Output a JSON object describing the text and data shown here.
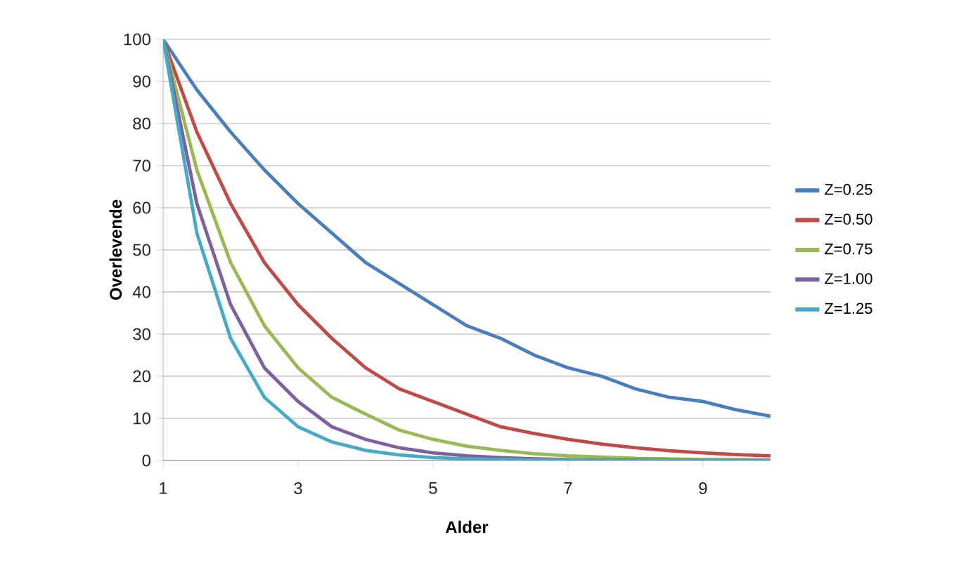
{
  "chart_data": {
    "type": "line",
    "xlabel": "Alder",
    "ylabel": "Overlevende",
    "x": [
      1,
      1.5,
      2,
      2.5,
      3,
      3.5,
      4,
      4.5,
      5,
      5.5,
      6,
      6.5,
      7,
      7.5,
      8,
      8.5,
      9,
      9.5,
      10
    ],
    "xlim": [
      1,
      10
    ],
    "xticks": [
      1,
      3,
      5,
      7,
      9
    ],
    "ylim": [
      0,
      100
    ],
    "yticks": [
      0,
      10,
      20,
      30,
      40,
      50,
      60,
      70,
      80,
      90,
      100
    ],
    "grid": "y",
    "legend": "right",
    "marker": "none",
    "line_style": "solid",
    "series": [
      {
        "name": "Z=0.25",
        "color": "#4a7ebb",
        "values": [
          100,
          88,
          78,
          69,
          61,
          54,
          47,
          42,
          37,
          32,
          29,
          25,
          22,
          20,
          17,
          15,
          14,
          12,
          10.5
        ]
      },
      {
        "name": "Z=0.50",
        "color": "#be4b48",
        "values": [
          100,
          78,
          61,
          47,
          37,
          29,
          22,
          17,
          14,
          11,
          8,
          6.4,
          5,
          3.9,
          3,
          2.3,
          1.8,
          1.4,
          1.1
        ]
      },
      {
        "name": "Z=0.75",
        "color": "#98b954",
        "values": [
          100,
          69,
          47,
          32,
          22,
          15,
          11,
          7.2,
          5,
          3.4,
          2.4,
          1.6,
          1.1,
          0.8,
          0.5,
          0.4,
          0.2,
          0.2,
          0.1
        ]
      },
      {
        "name": "Z=1.00",
        "color": "#7d60a0",
        "values": [
          100,
          61,
          37,
          22,
          14,
          8,
          5,
          3,
          1.8,
          1.1,
          0.7,
          0.4,
          0.2,
          0.1,
          0.1,
          0,
          0,
          0,
          0
        ]
      },
      {
        "name": "Z=1.25",
        "color": "#46aac5",
        "values": [
          100,
          54,
          29,
          15,
          8,
          4.4,
          2.4,
          1.3,
          0.7,
          0.4,
          0.2,
          0.1,
          0.1,
          0,
          0,
          0,
          0,
          0,
          0
        ]
      }
    ]
  }
}
